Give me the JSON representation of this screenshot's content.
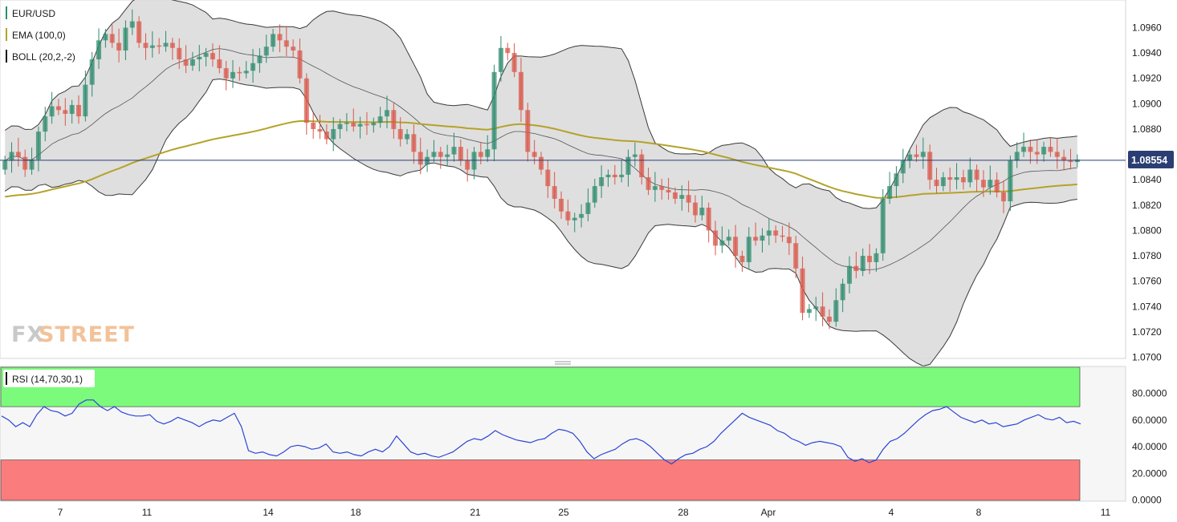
{
  "legend": {
    "symbol": "EUR/USD",
    "ema": "EMA (100,0)",
    "boll": "BOLL (20,2,-2)",
    "rsi": "RSI (14,70,30,1)"
  },
  "watermark": {
    "part1": "FX",
    "part2": "STREET"
  },
  "price_tag": "1.08554",
  "colors": {
    "up": "#2e8b6e",
    "down": "#d9574a",
    "ema": "#b5a22a",
    "boll_fill": "#d9d9d9",
    "boll_line": "#3a3a3a",
    "rsi_line": "#2b45d6",
    "overbought_zone": "#7cfa7c",
    "oversold_zone": "#fa7c7c",
    "price_line": "#2b3e73"
  },
  "chart_data": [
    {
      "type": "candlestick",
      "title": "EUR/USD",
      "timeframe_labels": [
        "7",
        "11",
        "14",
        "18",
        "21",
        "25",
        "28",
        "Apr",
        "4",
        "8",
        "11"
      ],
      "y_ticks": [
        "1.0960",
        "1.0940",
        "1.0920",
        "1.0900",
        "1.0880",
        "1.0860",
        "1.0840",
        "1.0820",
        "1.0800",
        "1.0780",
        "1.0760",
        "1.0740",
        "1.0720",
        "1.0700"
      ],
      "ylim": [
        1.07,
        1.096
      ],
      "last_price": 1.08554,
      "closes": [
        1.0855,
        1.0862,
        1.0858,
        1.0848,
        1.0856,
        1.0878,
        1.089,
        1.0898,
        1.0895,
        1.0892,
        1.0899,
        1.089,
        1.0915,
        1.0935,
        1.095,
        1.0955,
        1.0948,
        1.0942,
        1.096,
        1.0965,
        1.0948,
        1.0944,
        1.0946,
        1.0945,
        1.0948,
        1.0944,
        1.0935,
        1.093,
        1.0935,
        1.0937,
        1.094,
        1.0935,
        1.0928,
        1.092,
        1.0925,
        1.0924,
        1.0926,
        1.0932,
        1.0938,
        1.0945,
        1.0955,
        1.095,
        1.0945,
        1.0942,
        1.092,
        1.0885,
        1.088,
        1.0878,
        1.0872,
        1.088,
        1.0884,
        1.0885,
        1.0882,
        1.0884,
        1.0883,
        1.0885,
        1.089,
        1.0895,
        1.088,
        1.0872,
        1.0876,
        1.0862,
        1.0852,
        1.0858,
        1.0862,
        1.0858,
        1.086,
        1.0866,
        1.0855,
        1.0848,
        1.0862,
        1.0858,
        1.0864,
        1.0925,
        1.0944,
        1.094,
        1.0925,
        1.0895,
        1.0862,
        1.0858,
        1.0848,
        1.0835,
        1.0825,
        1.0815,
        1.0808,
        1.081,
        1.0813,
        1.0822,
        1.0835,
        1.0842,
        1.0844,
        1.0842,
        1.0844,
        1.0858,
        1.086,
        1.0842,
        1.0832,
        1.0835,
        1.0832,
        1.083,
        1.0825,
        1.0828,
        1.0822,
        1.0812,
        1.0818,
        1.08,
        1.0788,
        1.0792,
        1.0795,
        1.078,
        1.0775,
        1.0795,
        1.0792,
        1.0796,
        1.08,
        1.0796,
        1.0795,
        1.079,
        1.077,
        1.0735,
        1.0738,
        1.074,
        1.0732,
        1.0728,
        1.0745,
        1.0758,
        1.0772,
        1.0768,
        1.078,
        1.0775,
        1.0782,
        1.0825,
        1.0835,
        1.0845,
        1.0855,
        1.086,
        1.0858,
        1.0862,
        1.084,
        1.0835,
        1.0842,
        1.084,
        1.0842,
        1.0838,
        1.0848,
        1.084,
        1.0834,
        1.084,
        1.083,
        1.0823,
        1.0855,
        1.0862,
        1.0866,
        1.0862,
        1.086,
        1.0866,
        1.0862,
        1.0858,
        1.0855,
        1.0854,
        1.0856
      ],
      "rsi": {
        "levels": [
          70,
          30
        ],
        "y_ticks": [
          "80.0000",
          "60.0000",
          "40.0000",
          "20.0000",
          "0.0000"
        ],
        "ylim": [
          0,
          90
        ],
        "values": [
          63,
          60,
          55,
          58,
          55,
          64,
          70,
          67,
          66,
          63,
          65,
          72,
          75,
          75,
          70,
          67,
          70,
          66,
          64,
          63,
          63,
          64,
          59,
          57,
          59,
          62,
          60,
          58,
          55,
          58,
          60,
          59,
          62,
          65,
          55,
          37,
          35,
          36,
          34,
          33,
          36,
          40,
          41,
          40,
          38,
          39,
          42,
          36,
          35,
          36,
          34,
          33,
          36,
          38,
          36,
          40,
          48,
          42,
          36,
          34,
          35,
          33,
          32,
          34,
          36,
          40,
          44,
          46,
          45,
          48,
          52,
          49,
          47,
          45,
          44,
          43,
          45,
          46,
          50,
          53,
          52,
          50,
          44,
          36,
          31,
          34,
          36,
          38,
          42,
          45,
          46,
          44,
          40,
          35,
          30,
          27,
          31,
          34,
          35,
          38,
          40,
          44,
          50,
          55,
          60,
          65,
          62,
          60,
          58,
          56,
          52,
          50,
          46,
          44,
          41,
          43,
          44,
          43,
          42,
          40,
          32,
          29,
          31,
          28,
          30,
          38,
          44,
          46,
          50,
          55,
          60,
          64,
          67,
          68,
          70,
          66,
          62,
          60,
          58,
          60,
          57,
          58,
          55,
          56,
          57,
          60,
          62,
          64,
          61,
          60,
          62,
          58,
          59,
          57
        ]
      }
    }
  ]
}
